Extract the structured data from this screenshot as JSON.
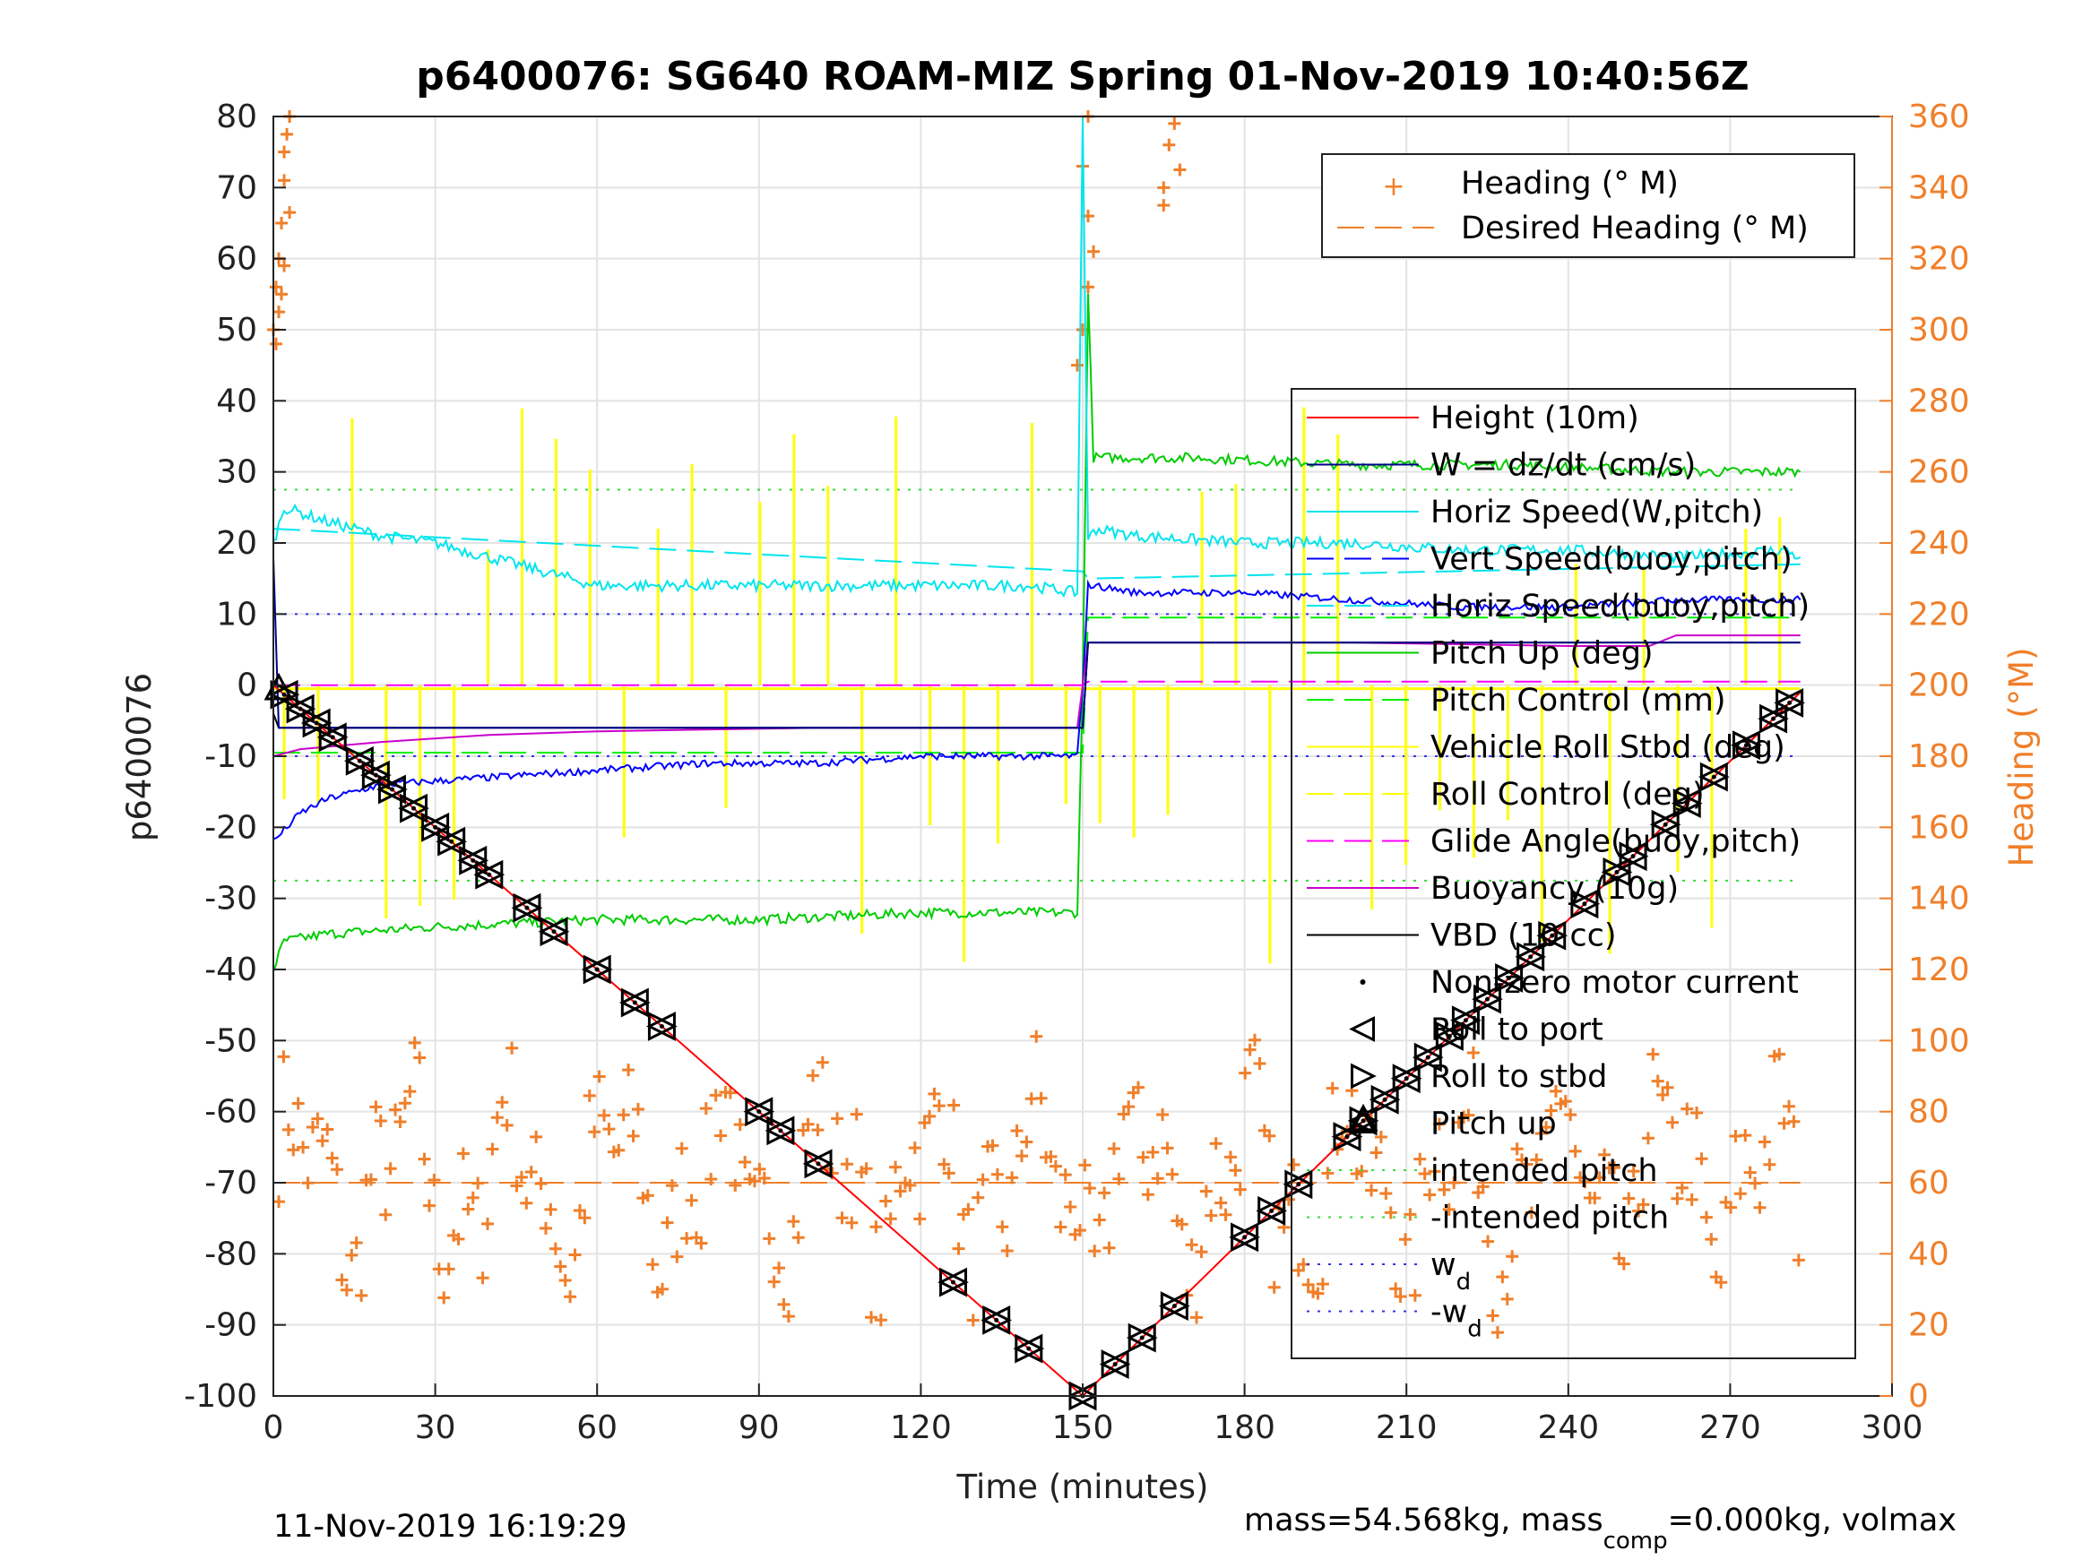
{
  "chart_data": {
    "type": "line",
    "title": "p6400076: SG640 ROAM-MIZ Spring 01-Nov-2019 10:40:56Z",
    "xlabel": "Time (minutes)",
    "ylabel": "p6400076",
    "y2label": "Heading (°M)",
    "xlim": [
      0,
      300
    ],
    "ylim": [
      -100,
      80
    ],
    "y2lim": [
      0,
      360
    ],
    "xticks": [
      "0",
      "30",
      "60",
      "90",
      "120",
      "150",
      "180",
      "210",
      "240",
      "270",
      "300"
    ],
    "yticks": [
      "80",
      "70",
      "60",
      "50",
      "40",
      "30",
      "20",
      "10",
      "0",
      "-10",
      "-20",
      "-30",
      "-40",
      "-50",
      "-60",
      "-70",
      "-80",
      "-90",
      "-100"
    ],
    "y2ticks": [
      "360",
      "340",
      "320",
      "300",
      "280",
      "260",
      "240",
      "220",
      "200",
      "180",
      "160",
      "140",
      "120",
      "100",
      "80",
      "60",
      "40",
      "20",
      "0"
    ],
    "grid": true,
    "footer_left": "11-Nov-2019 16:19:29",
    "footer_right": "mass=54.568kg, mass",
    "footer_right_sub": "comp",
    "footer_right_tail": "=0.000kg, volmax",
    "legend_heading": [
      {
        "label": "Heading (° M)",
        "color": "#f07f2a",
        "marker": "+"
      },
      {
        "label": "Desired Heading (° M)",
        "color": "#f07f2a",
        "style": "dashed"
      }
    ],
    "legend_main": [
      {
        "label": "Height (10m)",
        "color": "#ff0000",
        "style": "solid"
      },
      {
        "label": "W = dz/dt (cm/s)",
        "color": "#00008b",
        "style": "solid"
      },
      {
        "label": "Horiz Speed(W,pitch)",
        "color": "#00e5ee",
        "style": "solid"
      },
      {
        "label": "Vert Speed(buoy,pitch)",
        "color": "#0000ff",
        "style": "dashed"
      },
      {
        "label": "Horiz Speed(buoy,pitch)",
        "color": "#00e5ee",
        "style": "dashed"
      },
      {
        "label": "Pitch Up (deg)",
        "color": "#00cc00",
        "style": "solid"
      },
      {
        "label": "Pitch Control (mm)",
        "color": "#00ee00",
        "style": "dashed"
      },
      {
        "label": "Vehicle Roll Stbd (deg)",
        "color": "#ffff00",
        "style": "solid"
      },
      {
        "label": "Roll Control (deg)",
        "color": "#ffff00",
        "style": "dashed"
      },
      {
        "label": "Glide Angle(buoy,pitch)",
        "color": "#ff00ff",
        "style": "dashed"
      },
      {
        "label": "Buoyancy (10g)",
        "color": "#cc00cc",
        "style": "solid"
      },
      {
        "label": "VBD (10 cc)",
        "color": "#000000",
        "style": "solid"
      },
      {
        "label": "Non-zero motor current",
        "color": "#000000",
        "marker": "dot"
      },
      {
        "label": "Roll to port",
        "color": "#000000",
        "marker": "tri-left"
      },
      {
        "label": "Roll to stbd",
        "color": "#000000",
        "marker": "tri-right"
      },
      {
        "label": "Pitch up",
        "color": "#000000",
        "marker": "tri-up"
      },
      {
        "label": "intended pitch",
        "color": "#33dd33",
        "style": "dotted"
      },
      {
        "label": "-intended pitch",
        "color": "#33dd33",
        "style": "dotted"
      },
      {
        "label": "w",
        "sub": "d",
        "color": "#3333ee",
        "style": "dotted"
      },
      {
        "label": "-w",
        "sub": "d",
        "color": "#3333ee",
        "style": "dotted"
      }
    ],
    "series": {
      "height": {
        "x": [
          0,
          150,
          283
        ],
        "y": [
          0,
          -100,
          -1
        ]
      },
      "w": {
        "x": [
          0,
          1,
          150,
          151,
          283
        ],
        "y": [
          18,
          -6,
          -6,
          6,
          6
        ]
      },
      "horiz_speed": {
        "x": [
          0,
          2,
          10,
          20,
          30,
          40,
          50,
          60,
          80,
          100,
          120,
          140,
          149,
          150,
          151,
          152,
          160,
          180,
          200,
          220,
          240,
          260,
          280,
          283
        ],
        "y": [
          20,
          25,
          23,
          21,
          20,
          18,
          16,
          14,
          14,
          14,
          14,
          14,
          13,
          80,
          20,
          22,
          21,
          20,
          20,
          19,
          19,
          18,
          19,
          18
        ]
      },
      "vert_speed_model": {
        "x": [
          0,
          5,
          10,
          20,
          40,
          60,
          80,
          100,
          120,
          140,
          149,
          150,
          151,
          152,
          160,
          180,
          200,
          220,
          240,
          260,
          280,
          283
        ],
        "y": [
          -22,
          -18,
          -16,
          -14,
          -13,
          -12,
          -11,
          -11,
          -10,
          -10,
          -10,
          0,
          14,
          14,
          13,
          13,
          12,
          11,
          11,
          12,
          12,
          12
        ]
      },
      "horiz_speed_model": {
        "x": [
          0,
          150,
          151,
          283
        ],
        "y": [
          22,
          16,
          15,
          17
        ]
      },
      "pitch": {
        "x": [
          0,
          2,
          10,
          30,
          60,
          90,
          120,
          149,
          150,
          151,
          152,
          170,
          200,
          230,
          260,
          280,
          283
        ],
        "y": [
          -40,
          -36,
          -35,
          -34,
          -33,
          -33,
          -32,
          -32,
          0,
          55,
          32,
          32,
          31,
          31,
          30,
          30,
          30
        ]
      },
      "pitch_control": {
        "x": [
          0,
          150,
          151,
          283
        ],
        "y": [
          -9.5,
          -9.5,
          9.5,
          9.5
        ]
      },
      "glide_angle": {
        "x": [
          0,
          150,
          151,
          283
        ],
        "y": [
          0,
          0,
          0.5,
          0.5
        ]
      },
      "buoyancy": {
        "x": [
          0,
          5,
          20,
          40,
          60,
          100,
          149,
          150,
          151,
          200,
          240,
          255,
          260,
          283
        ],
        "y": [
          -10,
          -9,
          -8,
          -7,
          -6.5,
          -6,
          -6,
          0,
          6,
          6,
          5.5,
          5.5,
          7,
          7
        ]
      },
      "vbd": {
        "x": [
          0,
          1,
          150,
          151,
          283
        ],
        "y": [
          -4,
          -6,
          -6,
          6,
          6
        ]
      },
      "intended_pitch": 27.5,
      "wd": 10
    },
    "motor_events_t": [
      2,
      5,
      8,
      11,
      16,
      19,
      22,
      26,
      30,
      33,
      37,
      40,
      47,
      52,
      60,
      67,
      72,
      90,
      94,
      101,
      126,
      134,
      140,
      150,
      156,
      161,
      167,
      180,
      185,
      190,
      199,
      202,
      206,
      210,
      214,
      218,
      221,
      225,
      229,
      233,
      237,
      243,
      249,
      252,
      258,
      262,
      267,
      273,
      278,
      281
    ],
    "pitch_up_t": [
      1,
      202
    ],
    "heading_points": [
      [
        0,
        300
      ],
      [
        0.5,
        312
      ],
      [
        1,
        320
      ],
      [
        1.5,
        330
      ],
      [
        2,
        342
      ],
      [
        2.5,
        355
      ],
      [
        3,
        360
      ],
      [
        1,
        305
      ],
      [
        2,
        318
      ],
      [
        3,
        333
      ],
      [
        2,
        350
      ],
      [
        3,
        360
      ],
      [
        0.5,
        296
      ],
      [
        1.5,
        310
      ],
      [
        165,
        340
      ],
      [
        166,
        352
      ],
      [
        167,
        358
      ],
      [
        168,
        345
      ],
      [
        165,
        335
      ],
      [
        149,
        290
      ],
      [
        150,
        300
      ],
      [
        151,
        312
      ],
      [
        152,
        322
      ],
      [
        151,
        332
      ],
      [
        150,
        346
      ],
      [
        151,
        360
      ]
    ],
    "desired_heading": {
      "x": [
        0,
        283
      ],
      "y": [
        60,
        60
      ]
    }
  }
}
